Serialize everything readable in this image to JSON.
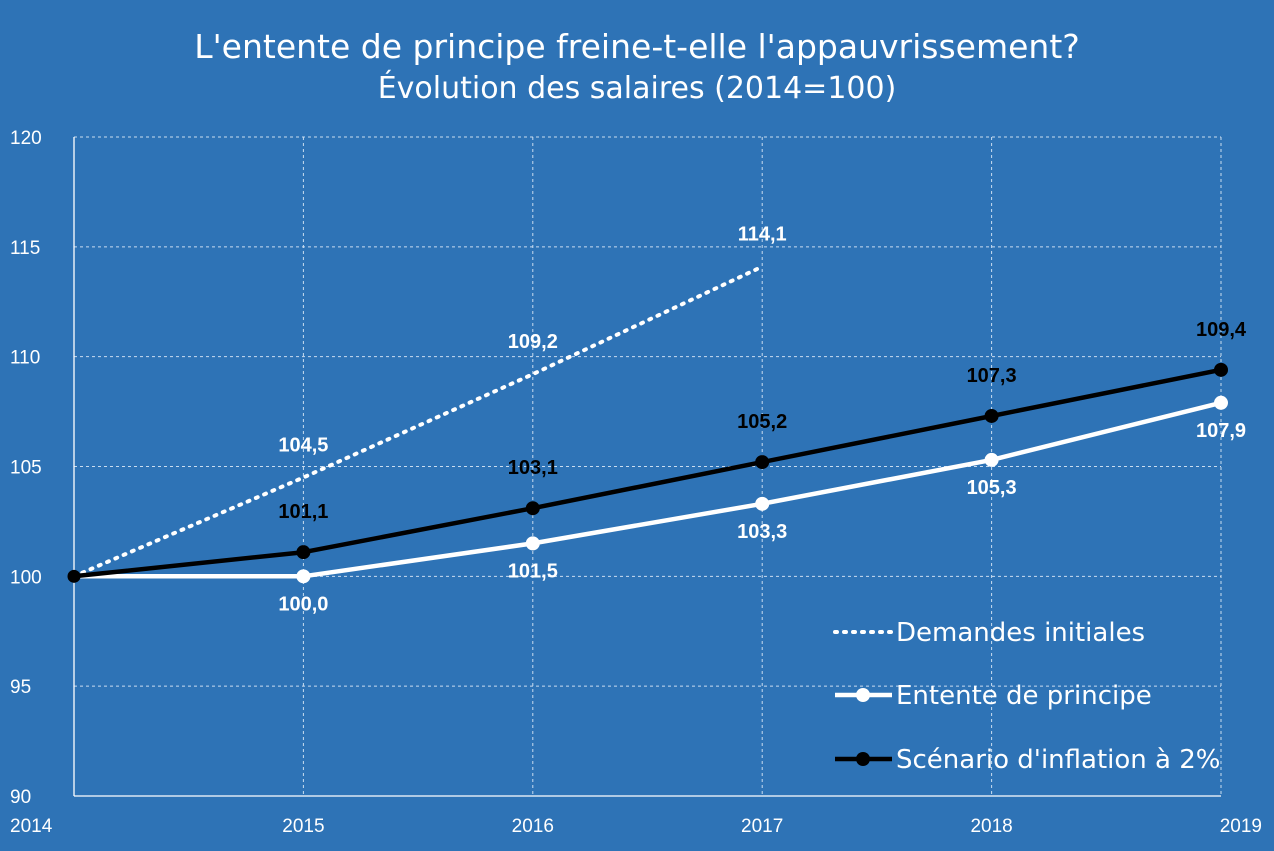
{
  "chart_data": {
    "type": "line",
    "title": "L'entente de principe freine-t-elle l'appauvrissement?",
    "subtitle": "Évolution des salaires (2014=100)",
    "x": [
      "2014",
      "2015",
      "2016",
      "2017",
      "2018",
      "2019"
    ],
    "y_ticks": [
      "120",
      "115",
      "110",
      "105",
      "100",
      "95",
      "90"
    ],
    "ylim": [
      90,
      120
    ],
    "grid": true,
    "legend_position": "bottom-right",
    "series": [
      {
        "name": "Demandes initiales",
        "values": [
          100,
          104.5,
          109.2,
          114.1,
          null,
          null
        ],
        "labels": [
          "",
          "104,5",
          "109,2",
          "114,1",
          "",
          ""
        ],
        "color": "#ffffff",
        "style": "dotted"
      },
      {
        "name": "Entente de principe",
        "values": [
          100,
          100.0,
          101.5,
          103.3,
          105.3,
          107.9
        ],
        "labels": [
          "",
          "100,0",
          "101,5",
          "103,3",
          "105,3",
          "107,9"
        ],
        "color": "#ffffff",
        "style": "solid-markers"
      },
      {
        "name": "Scénario d'inflation à 2%",
        "values": [
          100,
          101.1,
          103.1,
          105.2,
          107.3,
          109.4
        ],
        "labels": [
          "",
          "101,1",
          "103,1",
          "105,2",
          "107,3",
          "109,4"
        ],
        "color": "#000000",
        "style": "solid-markers"
      }
    ]
  }
}
